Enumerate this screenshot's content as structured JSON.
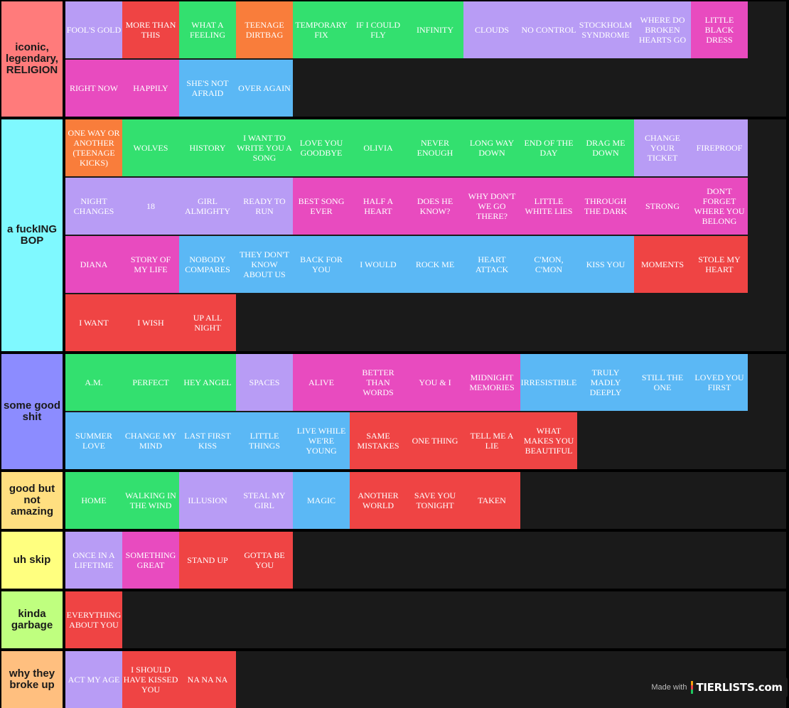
{
  "colors": {
    "purple": "#b89cf5",
    "red": "#ef4444",
    "green": "#33e06f",
    "orange": "#f97d3b",
    "pink": "#e84bbf",
    "blue": "#5bb8f5"
  },
  "tiers": [
    {
      "label": "iconic, legendary, RELIGION",
      "color": "#ff7b7b",
      "items": [
        {
          "text": "FOOL'S GOLD",
          "color": "purple"
        },
        {
          "text": "MORE THAN THIS",
          "color": "red"
        },
        {
          "text": "WHAT A FEELING",
          "color": "green"
        },
        {
          "text": "TEENAGE DIRTBAG",
          "color": "orange"
        },
        {
          "text": "TEMPORARY FIX",
          "color": "green"
        },
        {
          "text": "IF I COULD FLY",
          "color": "green"
        },
        {
          "text": "INFINITY",
          "color": "green"
        },
        {
          "text": "CLOUDS",
          "color": "purple"
        },
        {
          "text": "NO CONTROL",
          "color": "purple"
        },
        {
          "text": "STOCKHOLM SYNDROME",
          "color": "purple"
        },
        {
          "text": "WHERE DO BROKEN HEARTS GO",
          "color": "purple"
        },
        {
          "text": "LITTLE BLACK DRESS",
          "color": "pink"
        },
        {
          "text": "RIGHT NOW",
          "color": "pink"
        },
        {
          "text": "HAPPILY",
          "color": "pink"
        },
        {
          "text": "SHE'S NOT AFRAID",
          "color": "blue"
        },
        {
          "text": "OVER AGAIN",
          "color": "blue"
        }
      ]
    },
    {
      "label": "a fuckING BOP",
      "color": "#7ff9ff",
      "items": [
        {
          "text": "ONE WAY OR ANOTHER (TEENAGE KICKS)",
          "color": "orange"
        },
        {
          "text": "WOLVES",
          "color": "green"
        },
        {
          "text": "HISTORY",
          "color": "green"
        },
        {
          "text": "I WANT TO WRITE YOU A SONG",
          "color": "green"
        },
        {
          "text": "LOVE YOU GOODBYE",
          "color": "green"
        },
        {
          "text": "OLIVIA",
          "color": "green"
        },
        {
          "text": "NEVER ENOUGH",
          "color": "green"
        },
        {
          "text": "LONG WAY DOWN",
          "color": "green"
        },
        {
          "text": "END OF THE DAY",
          "color": "green"
        },
        {
          "text": "DRAG ME DOWN",
          "color": "green"
        },
        {
          "text": "CHANGE YOUR TICKET",
          "color": "purple"
        },
        {
          "text": "FIREPROOF",
          "color": "purple"
        },
        {
          "text": "NIGHT CHANGES",
          "color": "purple"
        },
        {
          "text": "18",
          "color": "purple"
        },
        {
          "text": "GIRL ALMIGHTY",
          "color": "purple"
        },
        {
          "text": "READY TO RUN",
          "color": "purple"
        },
        {
          "text": "BEST SONG EVER",
          "color": "pink"
        },
        {
          "text": "HALF A HEART",
          "color": "pink"
        },
        {
          "text": "DOES HE KNOW?",
          "color": "pink"
        },
        {
          "text": "WHY DON'T WE GO THERE?",
          "color": "pink"
        },
        {
          "text": "LITTLE WHITE LIES",
          "color": "pink"
        },
        {
          "text": "THROUGH THE DARK",
          "color": "pink"
        },
        {
          "text": "STRONG",
          "color": "pink"
        },
        {
          "text": "DON'T FORGET WHERE YOU BELONG",
          "color": "pink"
        },
        {
          "text": "DIANA",
          "color": "pink"
        },
        {
          "text": "STORY OF MY LIFE",
          "color": "pink"
        },
        {
          "text": "NOBODY COMPARES",
          "color": "blue"
        },
        {
          "text": "THEY DON'T KNOW ABOUT US",
          "color": "blue"
        },
        {
          "text": "BACK FOR YOU",
          "color": "blue"
        },
        {
          "text": "I WOULD",
          "color": "blue"
        },
        {
          "text": "ROCK ME",
          "color": "blue"
        },
        {
          "text": "HEART ATTACK",
          "color": "blue"
        },
        {
          "text": "C'MON, C'MON",
          "color": "blue"
        },
        {
          "text": "KISS YOU",
          "color": "blue"
        },
        {
          "text": "MOMENTS",
          "color": "red"
        },
        {
          "text": "STOLE MY HEART",
          "color": "red"
        },
        {
          "text": "I WANT",
          "color": "red"
        },
        {
          "text": "I WISH",
          "color": "red"
        },
        {
          "text": "UP ALL NIGHT",
          "color": "red"
        }
      ]
    },
    {
      "label": "some good shit",
      "color": "#8c8cff",
      "items": [
        {
          "text": "A.M.",
          "color": "green"
        },
        {
          "text": "PERFECT",
          "color": "green"
        },
        {
          "text": "HEY ANGEL",
          "color": "green"
        },
        {
          "text": "SPACES",
          "color": "purple"
        },
        {
          "text": "ALIVE",
          "color": "pink"
        },
        {
          "text": "BETTER THAN WORDS",
          "color": "pink"
        },
        {
          "text": "YOU & I",
          "color": "pink"
        },
        {
          "text": "MIDNIGHT MEMORIES",
          "color": "pink"
        },
        {
          "text": "IRRESISTIBLE",
          "color": "blue"
        },
        {
          "text": "TRULY MADLY DEEPLY",
          "color": "blue"
        },
        {
          "text": "STILL THE ONE",
          "color": "blue"
        },
        {
          "text": "LOVED YOU FIRST",
          "color": "blue"
        },
        {
          "text": "SUMMER LOVE",
          "color": "blue"
        },
        {
          "text": "CHANGE MY MIND",
          "color": "blue"
        },
        {
          "text": "LAST FIRST KISS",
          "color": "blue"
        },
        {
          "text": "LITTLE THINGS",
          "color": "blue"
        },
        {
          "text": "LIVE WHILE WE'RE YOUNG",
          "color": "blue"
        },
        {
          "text": "SAME MISTAKES",
          "color": "red"
        },
        {
          "text": "ONE THING",
          "color": "red"
        },
        {
          "text": "TELL ME A LIE",
          "color": "red"
        },
        {
          "text": "WHAT MAKES YOU BEAUTIFUL",
          "color": "red"
        }
      ]
    },
    {
      "label": "good but not amazing",
      "color": "#ffdf80",
      "items": [
        {
          "text": "HOME",
          "color": "green"
        },
        {
          "text": "WALKING IN THE WIND",
          "color": "green"
        },
        {
          "text": "ILLUSION",
          "color": "purple"
        },
        {
          "text": "STEAL MY GIRL",
          "color": "purple"
        },
        {
          "text": "MAGIC",
          "color": "blue"
        },
        {
          "text": "ANOTHER WORLD",
          "color": "red"
        },
        {
          "text": "SAVE YOU TONIGHT",
          "color": "red"
        },
        {
          "text": "TAKEN",
          "color": "red"
        }
      ]
    },
    {
      "label": "uh skip",
      "color": "#ffff7f",
      "items": [
        {
          "text": "ONCE IN A LIFETIME",
          "color": "purple"
        },
        {
          "text": "SOMETHING GREAT",
          "color": "pink"
        },
        {
          "text": "STAND UP",
          "color": "red"
        },
        {
          "text": "GOTTA BE YOU",
          "color": "red"
        }
      ]
    },
    {
      "label": "kinda garbage",
      "color": "#bfff7f",
      "items": [
        {
          "text": "EVERYTHING ABOUT YOU",
          "color": "red"
        }
      ]
    },
    {
      "label": "why they broke up",
      "color": "#ffbf7f",
      "items": [
        {
          "text": "ACT MY AGE",
          "color": "purple"
        },
        {
          "text": "I SHOULD HAVE KISSED YOU",
          "color": "red"
        },
        {
          "text": "NA NA NA",
          "color": "red"
        }
      ]
    }
  ],
  "watermark": {
    "made_with": "Made with",
    "logo": "TIERLISTS.com"
  }
}
